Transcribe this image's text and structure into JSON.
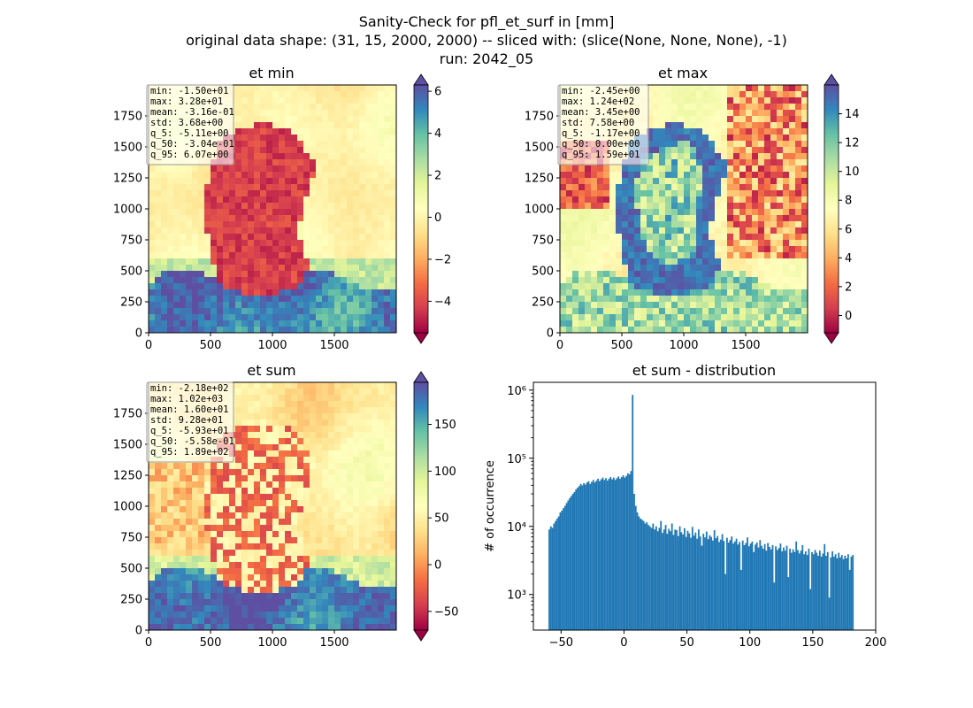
{
  "figure": {
    "title_line1": "Sanity-Check for pfl_et_surf in [mm]",
    "title_line2": "original data shape: (31, 15, 2000, 2000) -- sliced with: (slice(None, None, None), -1)",
    "title_line3": "run: 2042_05"
  },
  "colors": {
    "spectral": [
      "#9e0142",
      "#d53e4f",
      "#f46d43",
      "#fdae61",
      "#fee08b",
      "#ffffbf",
      "#e6f598",
      "#abdda4",
      "#66c2a5",
      "#3288bd",
      "#5e4fa2"
    ],
    "hist_bar": "#1f77b4"
  },
  "chart_data": [
    {
      "type": "heatmap",
      "title": "et min",
      "xlim": [
        0,
        2000
      ],
      "ylim": [
        0,
        2000
      ],
      "xticks": [
        "0",
        "500",
        "1000",
        "1500"
      ],
      "yticks": [
        "0",
        "250",
        "500",
        "750",
        "1000",
        "1250",
        "1500",
        "1750"
      ],
      "colorbar": {
        "min": -5.5,
        "max": 6.3,
        "ticks": [
          "−4",
          "−2",
          "0",
          "2",
          "4",
          "6"
        ],
        "tick_values": [
          -4,
          -2,
          0,
          2,
          4,
          6
        ]
      },
      "stats": [
        "min: -1.50e+01",
        "max: 3.28e+01",
        "mean: -3.16e-01",
        "std: 3.68e+00",
        "q_5: -5.11e+00",
        "q_50: -3.04e-01",
        "q_95: 6.07e+00"
      ]
    },
    {
      "type": "heatmap",
      "title": "et max",
      "xlim": [
        0,
        2000
      ],
      "ylim": [
        0,
        2000
      ],
      "xticks": [
        "0",
        "500",
        "1000",
        "1500"
      ],
      "yticks": [
        "0",
        "250",
        "500",
        "750",
        "1000",
        "1250",
        "1500",
        "1750"
      ],
      "colorbar": {
        "min": -1.2,
        "max": 16,
        "ticks": [
          "0",
          "2",
          "4",
          "6",
          "8",
          "10",
          "12",
          "14"
        ],
        "tick_values": [
          0,
          2,
          4,
          6,
          8,
          10,
          12,
          14
        ]
      },
      "stats": [
        "min: -2.45e+00",
        "max: 1.24e+02",
        "mean: 3.45e+00",
        "std: 7.58e+00",
        "q_5: -1.17e+00",
        "q_50: 0.00e+00",
        "q_95: 1.59e+01"
      ]
    },
    {
      "type": "heatmap",
      "title": "et sum",
      "xlim": [
        0,
        2000
      ],
      "ylim": [
        0,
        2000
      ],
      "xticks": [
        "0",
        "500",
        "1000",
        "1500"
      ],
      "yticks": [
        "0",
        "250",
        "500",
        "750",
        "1000",
        "1250",
        "1500",
        "1750"
      ],
      "colorbar": {
        "min": -70,
        "max": 195,
        "ticks": [
          "−50",
          "0",
          "50",
          "100",
          "150"
        ],
        "tick_values": [
          -50,
          0,
          50,
          100,
          150
        ]
      },
      "stats": [
        "min: -2.18e+02",
        "max: 1.02e+03",
        "mean: 1.60e+01",
        "std: 9.28e+01",
        "q_5: -5.93e+01",
        "q_50: -5.58e-01",
        "q_95: 1.89e+02"
      ]
    },
    {
      "type": "bar",
      "title": "et sum - distribution",
      "ylabel": "# of occurrence",
      "xlabel": "",
      "xlim": [
        -72,
        200
      ],
      "ylim": [
        300,
        1300000
      ],
      "yscale": "log",
      "xticks": [
        "−50",
        "0",
        "50",
        "100",
        "150",
        "200"
      ],
      "xtick_values": [
        -50,
        0,
        50,
        100,
        150,
        200
      ],
      "yticks": [
        "10³",
        "10⁴",
        "10⁵",
        "10⁶"
      ],
      "ytick_values": [
        1000,
        10000,
        100000,
        1000000
      ],
      "bins": {
        "start": -60,
        "width": 1.25
      },
      "values": [
        9000,
        10000,
        9500,
        11000,
        12000,
        13000,
        14000,
        16000,
        17000,
        18500,
        20000,
        22000,
        24000,
        26000,
        28000,
        30000,
        32000,
        35000,
        37000,
        39000,
        42000,
        40000,
        43000,
        41000,
        44000,
        46000,
        42000,
        45000,
        48000,
        44000,
        47000,
        50000,
        46000,
        49000,
        52000,
        48000,
        51000,
        47000,
        50000,
        53000,
        49000,
        52000,
        48000,
        51000,
        54000,
        50000,
        53000,
        56000,
        52000,
        55000,
        60000,
        58000,
        65000,
        850000,
        30000,
        20000,
        16000,
        14000,
        13000,
        12500,
        12000,
        11000,
        11500,
        10500,
        10000,
        9500,
        11000,
        9000,
        10000,
        8500,
        9500,
        12000,
        8000,
        9000,
        10500,
        7800,
        9200,
        8500,
        11000,
        7500,
        9000,
        8800,
        7200,
        10000,
        8200,
        7600,
        9400,
        7000,
        8600,
        7900,
        6800,
        9800,
        7300,
        8100,
        6600,
        9000,
        7100,
        5200,
        7800,
        6900,
        8400,
        6500,
        7400,
        7000,
        6200,
        8800,
        6700,
        7200,
        5900,
        6400,
        7700,
        6100,
        2000,
        6800,
        5800,
        6300,
        7100,
        5600,
        6000,
        6600,
        5400,
        5900,
        2300,
        6200,
        5300,
        5700,
        6900,
        5100,
        5600,
        6000,
        4200,
        5400,
        5800,
        4900,
        6300,
        5200,
        4700,
        5500,
        4400,
        5700,
        5000,
        4600,
        5300,
        1500,
        5100,
        4500,
        4800,
        5600,
        4300,
        4900,
        4400,
        5200,
        1800,
        4700,
        4100,
        4600,
        4200,
        6000,
        4500,
        4000,
        4400,
        5300,
        3900,
        4300,
        3800,
        4700,
        1200,
        4200,
        3900,
        4500,
        4100,
        3700,
        4400,
        3600,
        4000,
        5500,
        3700,
        4200,
        900,
        3500,
        4300,
        3600,
        3900,
        3400,
        4100,
        3500,
        3800,
        3300,
        3700,
        3400,
        3900,
        2300,
        3600,
        3800
      ]
    }
  ]
}
